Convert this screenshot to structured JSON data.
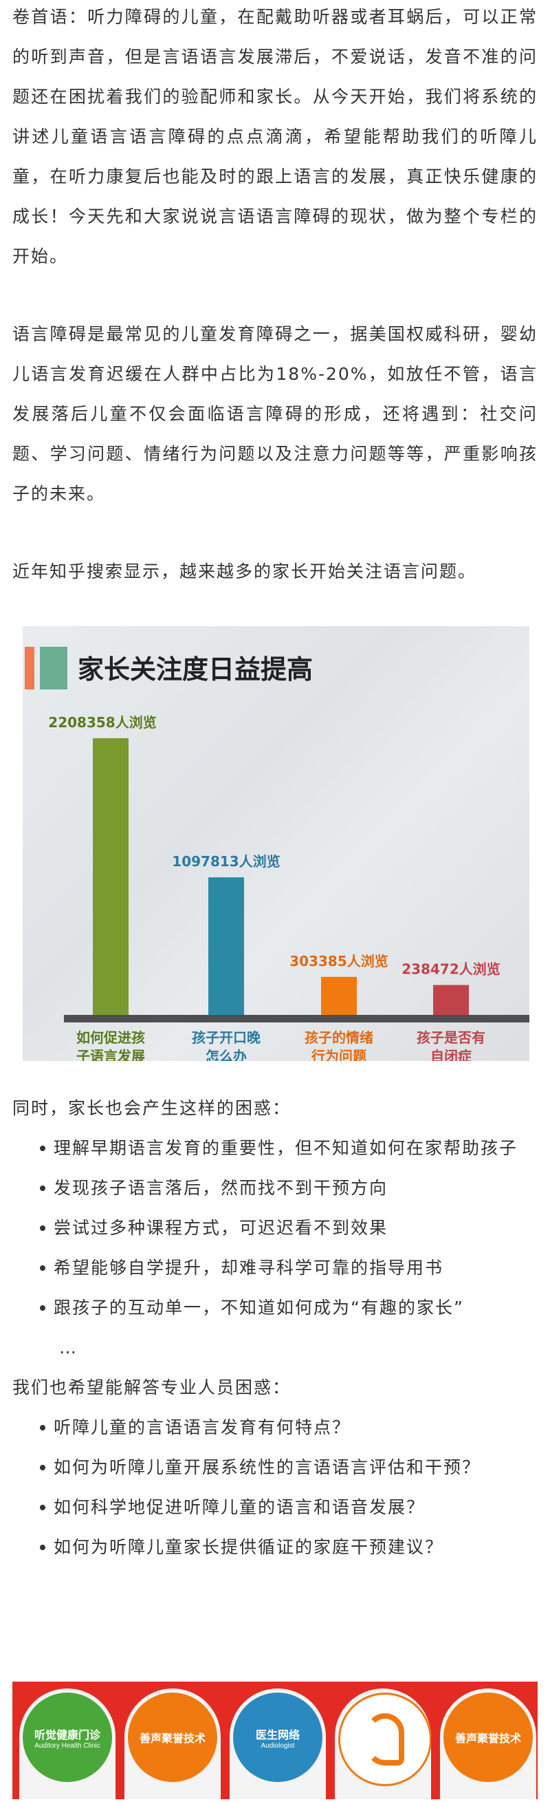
{
  "intro": "卷首语：听力障碍的儿童，在配戴助听器或者耳蜗后，可以正常的听到声音，但是言语语言发展滞后，不爱说话，发音不准的问题还在困扰着我们的验配师和家长。从今天开始，我们将系统的讲述儿童语言语言障碍的点点滴滴，希望能帮助我们的听障儿童，在听力康复后也能及时的跟上语言的发展，真正快乐健康的成长！今天先和大家说说言语语言障碍的现状，做为整个专栏的开始。",
  "para2": "语言障碍是最常见的儿童发育障碍之一，据美国权威科研，婴幼儿语言发育迟缓在人群中占比为18%-20%，如放任不管，语言发展落后儿童不仅会面临语言障碍的形成，还将遇到：社交问题、学习问题、情绪行为问题以及注意力问题等等，严重影响孩子的未来。",
  "para3": "近年知乎搜索显示，越来越多的家长开始关注语言问题。",
  "chart_data": {
    "type": "bar",
    "title": "家长关注度日益提高",
    "categories": [
      "如何促进孩子语言发展",
      "孩子开口晚怎么办",
      "孩子的情绪行为问题",
      "孩子是否有自闭症"
    ],
    "category_lines": [
      [
        "如何促进孩",
        "子语言发展"
      ],
      [
        "孩子开口晚",
        "怎么办"
      ],
      [
        "孩子的情绪",
        "行为问题"
      ],
      [
        "孩子是否有",
        "自闭症"
      ]
    ],
    "values": [
      2208358,
      1097813,
      303385,
      238472
    ],
    "value_labels": [
      "2208358人浏览",
      "1097813人浏览",
      "303385人浏览",
      "238472人浏览"
    ],
    "colors": [
      "#7a9a2e",
      "#2a8aa6",
      "#f07a10",
      "#c0434a"
    ],
    "label_colors": [
      "#5a7a1e",
      "#2a7aa0",
      "#e06a10",
      "#c0434a"
    ],
    "ylim": [
      0,
      2400000
    ],
    "grid": false
  },
  "para4": "同时，家长也会产生这样的困惑：",
  "parent_bullets": [
    "理解早期语言发育的重要性，但不知道如何在家帮助孩子",
    "发现孩子语言落后，然而找不到干预方向",
    "尝试过多种课程方式，可迟迟看不到效果",
    "希望能够自学提升，却难寻科学可靠的指导用书",
    "跟孩子的互动单一，不知道如何成为“有趣的家长”"
  ],
  "ellipsis": "…",
  "para5": "我们也希望能解答专业人员困惑：",
  "pro_bullets": [
    "听障儿童的言语语言发育有何特点？",
    "如何为听障儿童开展系统性的言语语言评估和干预？",
    "如何科学地促进听障儿童的语言和语音发展？",
    "如何为听障儿童家长提供循证的家庭干预建议？"
  ],
  "banner": {
    "tiles": [
      {
        "title": "听觉健康门诊",
        "subtitle": "Auditory Health Clinic",
        "color": "#4aa83a"
      },
      {
        "title": "善声聚誉技术",
        "subtitle": "",
        "color": "#f07a10"
      },
      {
        "title": "医生网络",
        "subtitle": "Audiologist",
        "color": "#2a8ac0"
      },
      {
        "title": "",
        "subtitle": "",
        "color": "#ffffff"
      },
      {
        "title": "善声聚誉技术",
        "subtitle": "",
        "color": "#f07a10"
      }
    ]
  }
}
